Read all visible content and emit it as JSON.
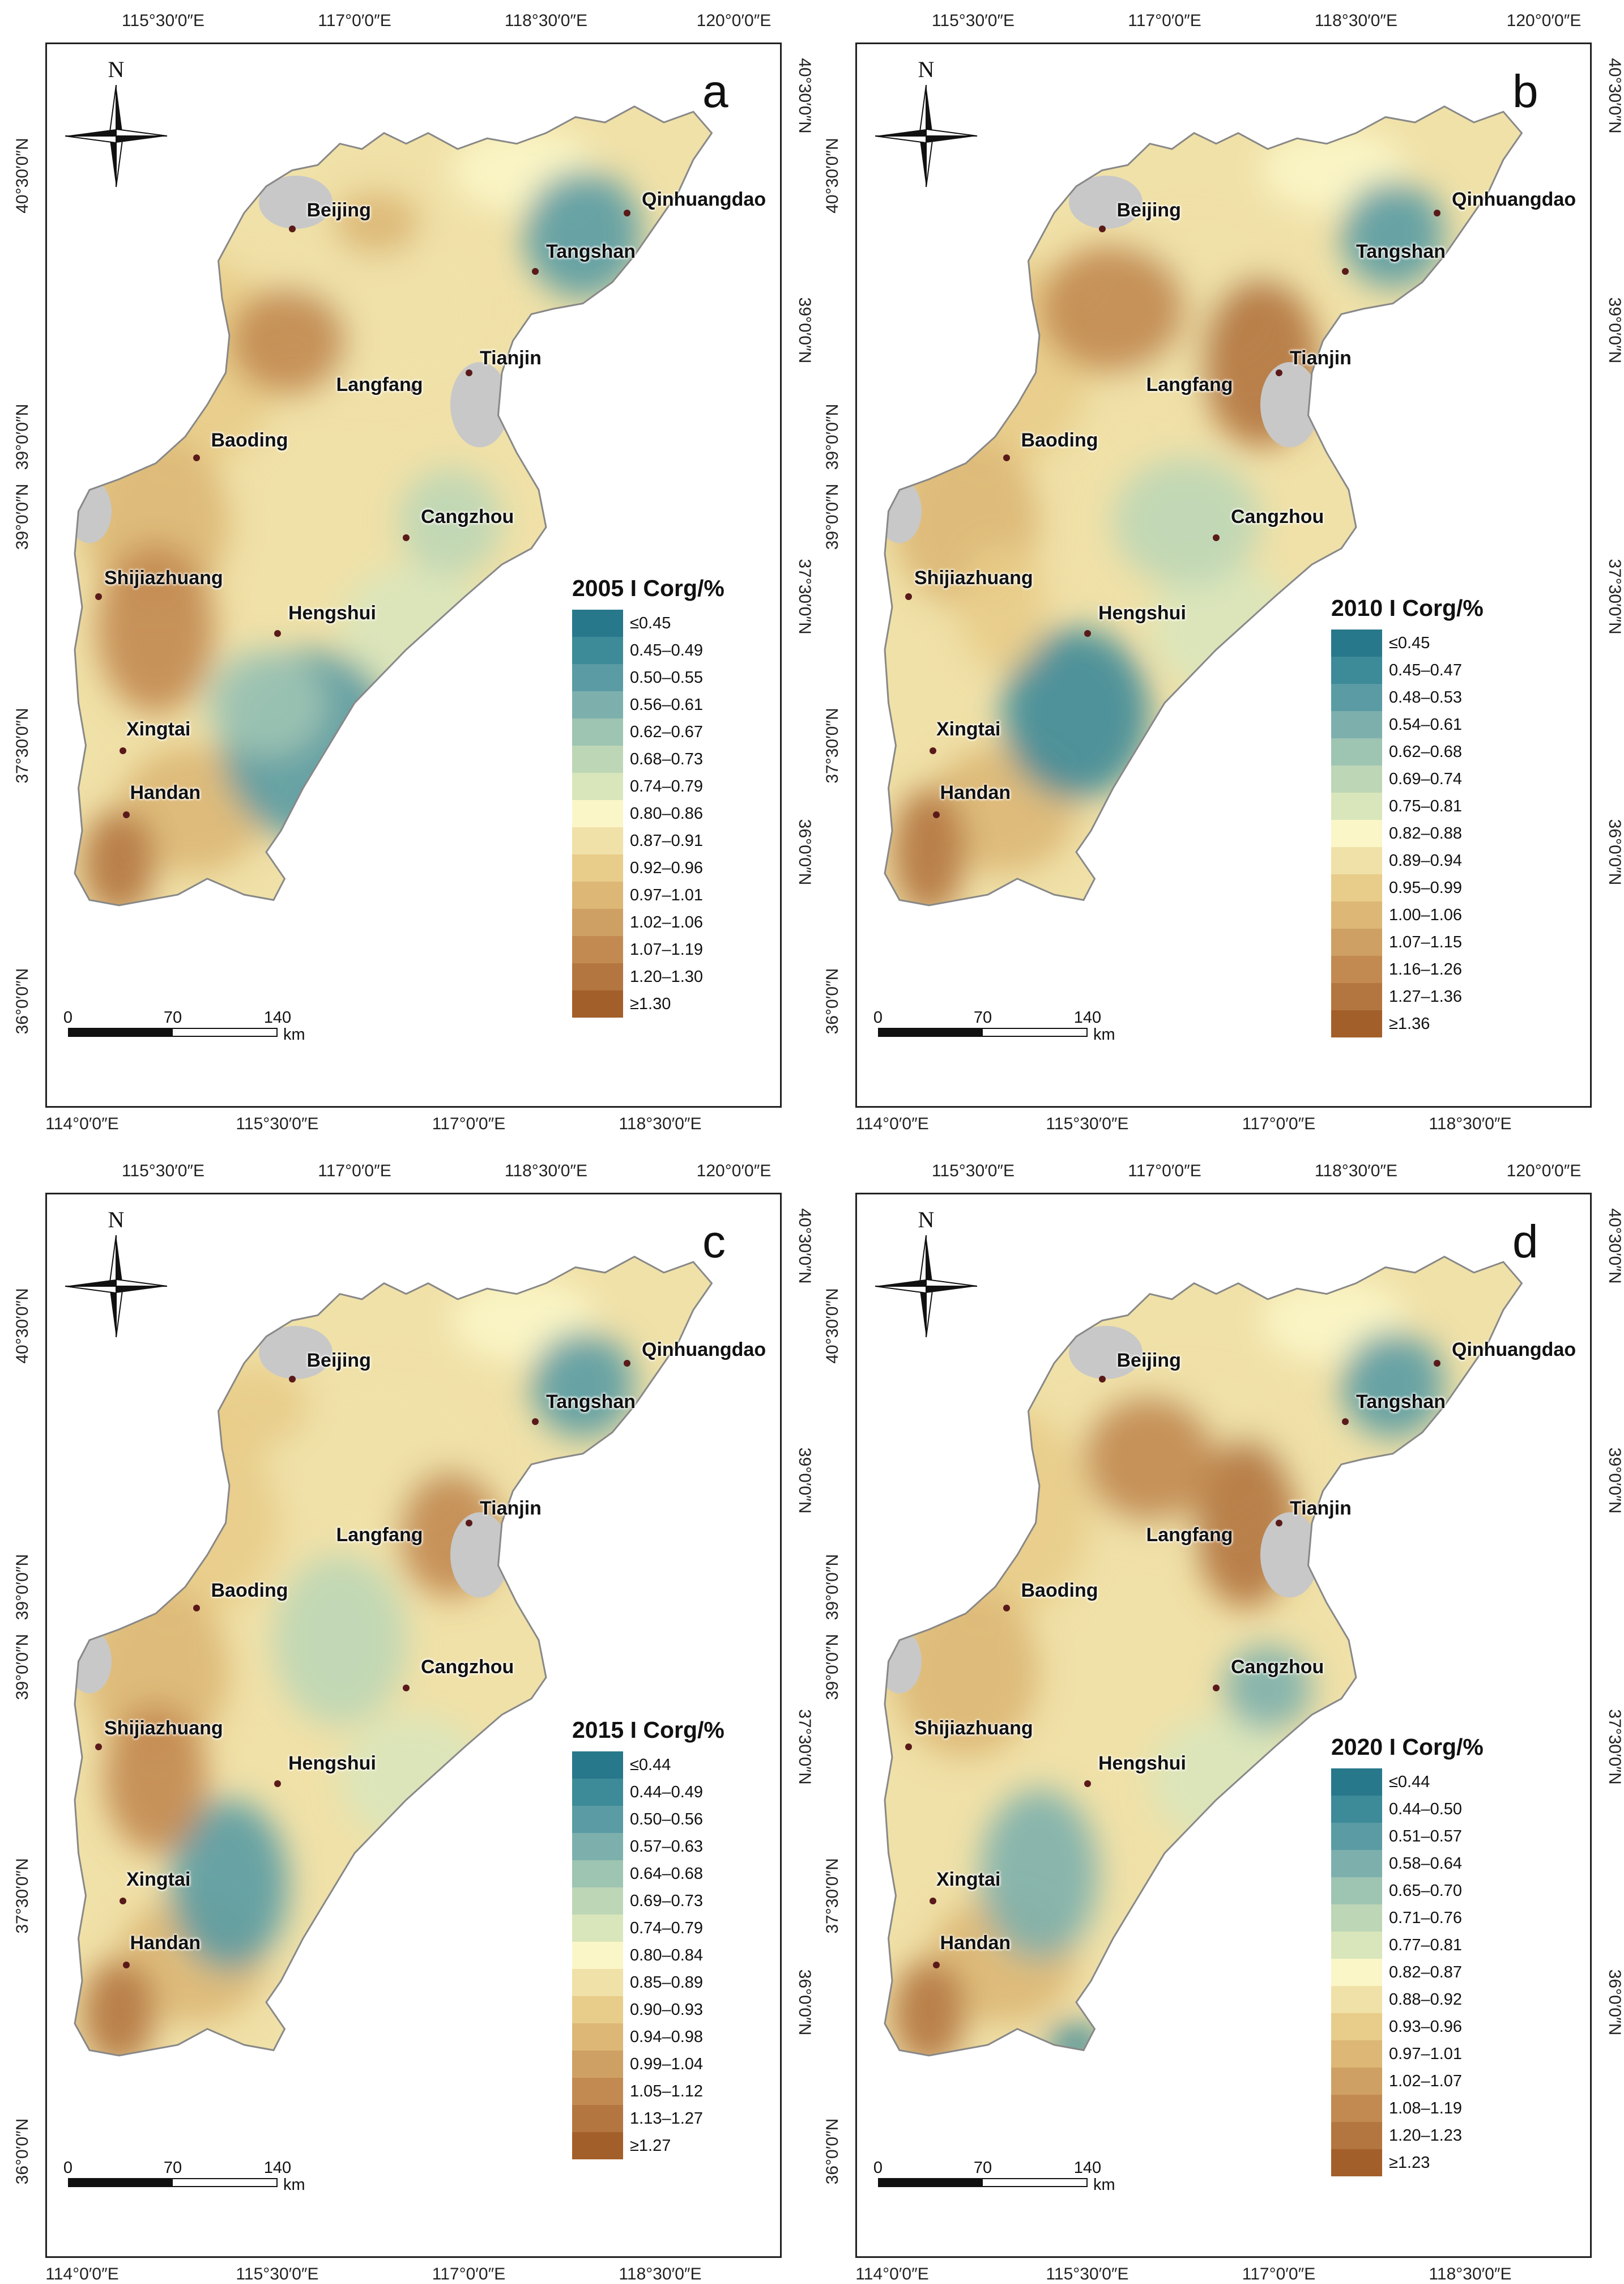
{
  "units_label": "km",
  "north_label": "N",
  "panels": [
    {
      "id": "a",
      "label": "a",
      "legend_title": "2005 I Corg/%",
      "top_ticks": [
        "115°30′0″E",
        "117°0′0″E",
        "118°30′0″E",
        "120°0′0″E"
      ],
      "bottom_ticks": [
        "114°0′0″E",
        "115°30′0″E",
        "117°0′0″E",
        "118°30′0″E"
      ],
      "left_ticks": [
        "40°30′0″N",
        "39°0′0″N",
        "39°0′0″N",
        "37°30′0″N",
        "36°0′0″N"
      ],
      "right_ticks": [
        "40°30′0″N",
        "39°0′0″N",
        "37°30′0″N",
        "36°0′0″N"
      ],
      "scale": [
        "0",
        "70",
        "140"
      ],
      "legend": [
        "≤0.45",
        "0.45–0.49",
        "0.50–0.55",
        "0.56–0.61",
        "0.62–0.67",
        "0.68–0.73",
        "0.74–0.79",
        "0.80–0.86",
        "0.87–0.91",
        "0.92–0.96",
        "0.97–1.01",
        "1.02–1.06",
        "1.07–1.19",
        "1.20–1.30",
        "≥1.30"
      ]
    },
    {
      "id": "b",
      "label": "b",
      "legend_title": "2010  I Corg/%",
      "top_ticks": [
        "115°30′0″E",
        "117°0′0″E",
        "118°30′0″E",
        "120°0′0″E"
      ],
      "bottom_ticks": [
        "114°0′0″E",
        "115°30′0″E",
        "117°0′0″E",
        "118°30′0″E"
      ],
      "left_ticks": [
        "40°30′0″N",
        "39°0′0″N",
        "39°0′0″N",
        "37°30′0″N",
        "36°0′0″N"
      ],
      "right_ticks": [
        "40°30′0″N",
        "39°0′0″N",
        "37°30′0″N",
        "36°0′0″N"
      ],
      "scale": [
        "0",
        "70",
        "140"
      ],
      "legend": [
        "≤0.45",
        "0.45–0.47",
        "0.48–0.53",
        "0.54–0.61",
        "0.62–0.68",
        "0.69–0.74",
        "0.75–0.81",
        "0.82–0.88",
        "0.89–0.94",
        "0.95–0.99",
        "1.00–1.06",
        "1.07–1.15",
        "1.16–1.26",
        "1.27–1.36",
        "≥1.36"
      ]
    },
    {
      "id": "c",
      "label": "c",
      "legend_title": "2015 I Corg/%",
      "top_ticks": [
        "115°30′0″E",
        "117°0′0″E",
        "118°30′0″E",
        "120°0′0″E"
      ],
      "bottom_ticks": [
        "114°0′0″E",
        "115°30′0″E",
        "117°0′0″E",
        "118°30′0″E"
      ],
      "left_ticks": [
        "40°30′0″N",
        "39°0′0″N",
        "39°0′0″N",
        "37°30′0″N",
        "36°0′0″N"
      ],
      "right_ticks": [
        "40°30′0″N",
        "39°0′0″N",
        "37°30′0″N",
        "36°0′0″N"
      ],
      "scale": [
        "0",
        "70",
        "140"
      ],
      "legend": [
        "≤0.44",
        "0.44–0.49",
        "0.50–0.56",
        "0.57–0.63",
        "0.64–0.68",
        "0.69–0.73",
        "0.74–0.79",
        "0.80–0.84",
        "0.85–0.89",
        "0.90–0.93",
        "0.94–0.98",
        "0.99–1.04",
        "1.05–1.12",
        "1.13–1.27",
        "≥1.27"
      ]
    },
    {
      "id": "d",
      "label": "d",
      "legend_title": "2020 I Corg/%",
      "top_ticks": [
        "115°30′0″E",
        "117°0′0″E",
        "118°30′0″E",
        "120°0′0″E"
      ],
      "bottom_ticks": [
        "114°0′0″E",
        "115°30′0″E",
        "117°0′0″E",
        "118°30′0″E"
      ],
      "left_ticks": [
        "40°30′0″N",
        "39°0′0″N",
        "39°0′0″N",
        "37°30′0″N",
        "36°0′0″N"
      ],
      "right_ticks": [
        "40°30′0″N",
        "39°0′0″N",
        "37°30′0″N",
        "36°0′0″N"
      ],
      "scale": [
        "0",
        "70",
        "140"
      ],
      "legend": [
        "≤0.44",
        "0.44–0.50",
        "0.51–0.57",
        "0.58–0.64",
        "0.65–0.70",
        "0.71–0.76",
        "0.77–0.81",
        "0.82–0.87",
        "0.88–0.92",
        "0.93–0.96",
        "0.97–1.01",
        "1.02–1.07",
        "1.08–1.19",
        "1.20–1.23",
        "≥1.23"
      ]
    }
  ],
  "cities": [
    "Beijing",
    "Qinhuangdao",
    "Tangshan",
    "Langfang",
    "Tianjin",
    "Baoding",
    "Cangzhou",
    "Shijiazhuang",
    "Hengshui",
    "Xingtai",
    "Handan"
  ],
  "legend_colors": [
    "#27788b",
    "#3d8a98",
    "#5a9ba4",
    "#7db0ad",
    "#9ec4b2",
    "#bdd6b6",
    "#d9e6bb",
    "#fbf6c8",
    "#f0e1a8",
    "#e8cc8a",
    "#dcb775",
    "#cfa063",
    "#c28a51",
    "#b47640",
    "#a35f2a"
  ]
}
